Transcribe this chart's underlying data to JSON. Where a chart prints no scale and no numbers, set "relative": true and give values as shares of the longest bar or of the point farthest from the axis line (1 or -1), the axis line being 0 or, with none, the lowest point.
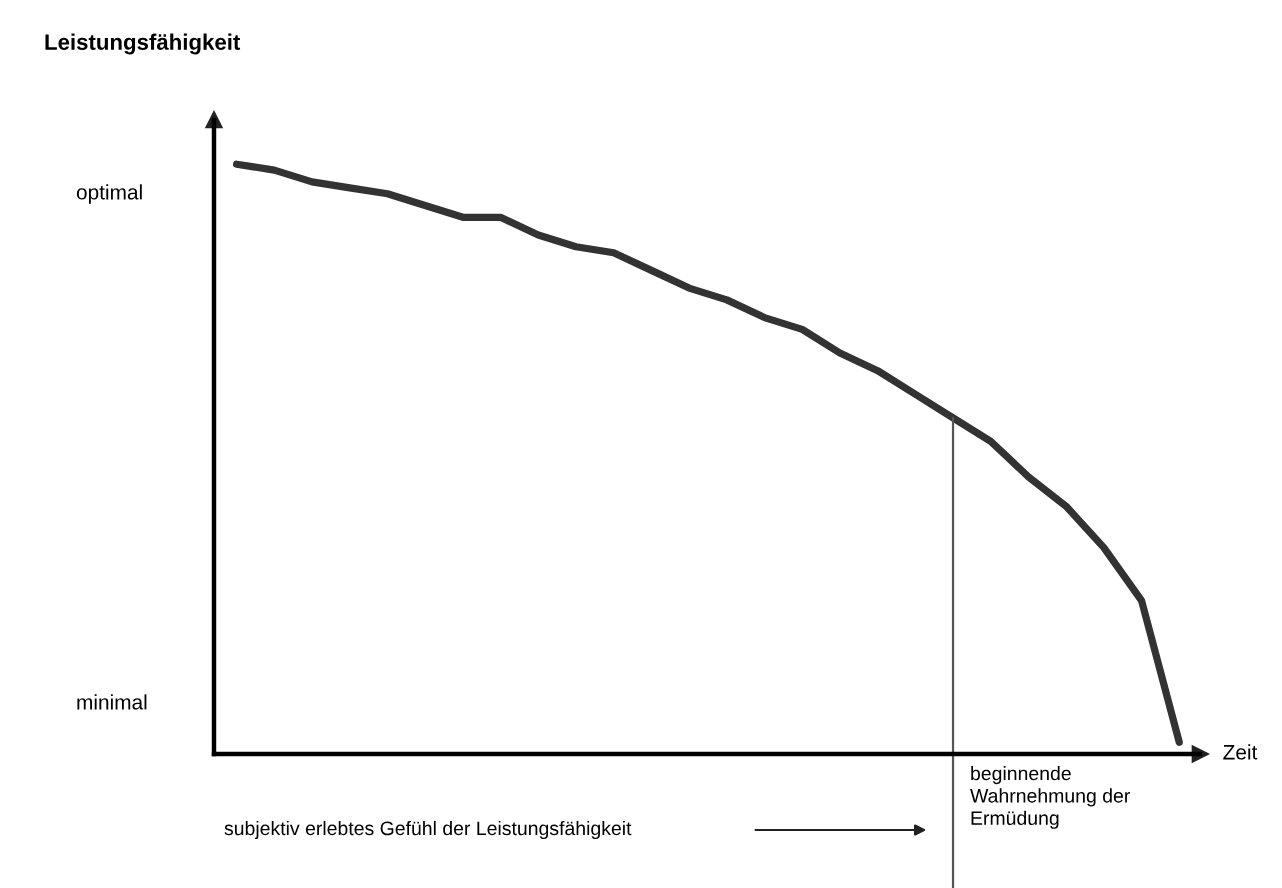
{
  "chart_data": {
    "type": "line",
    "relative": true,
    "ylabel": "Leistungsfähigkeit",
    "xlabel": "Zeit",
    "categories": [
      null,
      null,
      null,
      null,
      null,
      null,
      null,
      null,
      null,
      null,
      null,
      null,
      null,
      null,
      null,
      null,
      null,
      null,
      null,
      null,
      null,
      null,
      null,
      null,
      null,
      null
    ],
    "series": [
      {
        "color": "#333333",
        "values": [
          1.0,
          0.99,
          0.97,
          0.96,
          0.95,
          0.93,
          0.91,
          0.91,
          0.88,
          0.86,
          0.85,
          0.82,
          0.79,
          0.77,
          0.74,
          0.72,
          0.68,
          0.65,
          0.61,
          0.57,
          0.53,
          0.47,
          0.42,
          0.35,
          0.26,
          0.02
        ]
      }
    ],
    "grid": false,
    "legend": false,
    "marker": "none",
    "line_style": "solid",
    "annotations": [
      "optimal",
      "minimal",
      "subjektiv erlebtes Gefühl der Leistungsfähigkeit",
      "beginnende\nWahrnehmung der\nErmüdung"
    ]
  }
}
